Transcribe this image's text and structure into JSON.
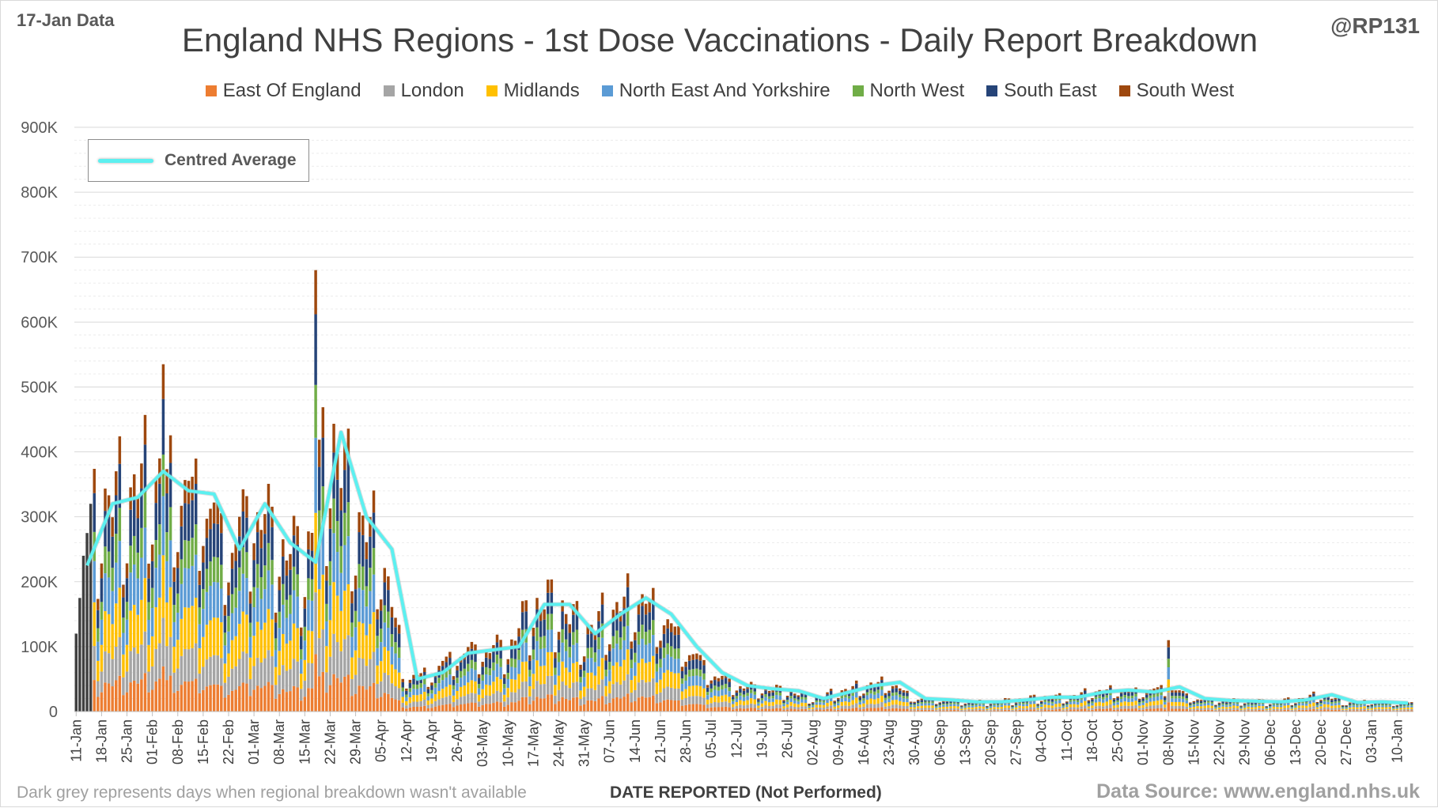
{
  "header": {
    "data_date": "17-Jan Data",
    "handle": "@RP131",
    "title": "England NHS Regions - 1st Dose Vaccinations - Daily Report Breakdown"
  },
  "footer": {
    "note": "Dark grey represents days when regional breakdown wasn't available",
    "xlabel": "DATE REPORTED (Not Performed)",
    "source": "Data Source: www.england.nhs.uk"
  },
  "average_legend": {
    "label": "Centred Average",
    "color": "#5cf0f0"
  },
  "chart_data": {
    "type": "bar",
    "stacked": true,
    "ylim": [
      0,
      900000
    ],
    "yticks": [
      0,
      100000,
      200000,
      300000,
      400000,
      500000,
      600000,
      700000,
      800000,
      900000
    ],
    "ytick_labels": [
      "0",
      "100K",
      "200K",
      "300K",
      "400K",
      "500K",
      "600K",
      "700K",
      "800K",
      "900K"
    ],
    "xtick_labels": [
      "11-Jan",
      "18-Jan",
      "25-Jan",
      "01-Feb",
      "08-Feb",
      "15-Feb",
      "22-Feb",
      "01-Mar",
      "08-Mar",
      "15-Mar",
      "22-Mar",
      "29-Mar",
      "05-Apr",
      "12-Apr",
      "19-Apr",
      "26-Apr",
      "03-May",
      "10-May",
      "17-May",
      "24-May",
      "31-May",
      "07-Jun",
      "14-Jun",
      "21-Jun",
      "28-Jun",
      "05-Jul",
      "12-Jul",
      "19-Jul",
      "26-Jul",
      "02-Aug",
      "09-Aug",
      "16-Aug",
      "23-Aug",
      "30-Aug",
      "06-Sep",
      "13-Sep",
      "20-Sep",
      "27-Sep",
      "04-Oct",
      "11-Oct",
      "18-Oct",
      "25-Oct",
      "01-Nov",
      "08-Nov",
      "15-Nov",
      "22-Nov",
      "29-Nov",
      "06-Dec",
      "13-Dec",
      "20-Dec",
      "27-Dec",
      "03-Jan",
      "10-Jan"
    ],
    "legend_position": "top-center",
    "grid": true,
    "series": [
      {
        "name": "East Of England",
        "color": "#ed7d31",
        "share": 0.13
      },
      {
        "name": "London",
        "color": "#a5a5a5",
        "share": 0.14
      },
      {
        "name": "Midlands",
        "color": "#ffc000",
        "share": 0.18
      },
      {
        "name": "North East And Yorkshire",
        "color": "#5b9bd5",
        "share": 0.17
      },
      {
        "name": "North West",
        "color": "#70ad47",
        "share": 0.12
      },
      {
        "name": "South East",
        "color": "#264478",
        "share": 0.16
      },
      {
        "name": "South West",
        "color": "#9e480e",
        "share": 0.1
      }
    ],
    "unavailable_color": "#404040",
    "unavailable_totals": [
      120000,
      175000,
      240000,
      275000,
      320000
    ],
    "weekly_average": [
      225000,
      320000,
      330000,
      370000,
      340000,
      335000,
      250000,
      320000,
      260000,
      230000,
      430000,
      300000,
      250000,
      50000,
      60000,
      90000,
      95000,
      100000,
      165000,
      165000,
      120000,
      150000,
      175000,
      150000,
      100000,
      60000,
      40000,
      35000,
      32000,
      20000,
      30000,
      40000,
      45000,
      20000,
      18000,
      15000,
      15000,
      18000,
      22000,
      22000,
      30000,
      33000,
      30000,
      38000,
      20000,
      17000,
      16000,
      15000,
      18000,
      26000,
      14000,
      15000,
      13000
    ],
    "weekend_dip": 0.6,
    "peaks": [
      {
        "x": "18-Mar",
        "value": 680000
      },
      {
        "x": "04-Feb",
        "value": 535000
      },
      {
        "x": "08-Nov",
        "value": 110000
      }
    ]
  }
}
